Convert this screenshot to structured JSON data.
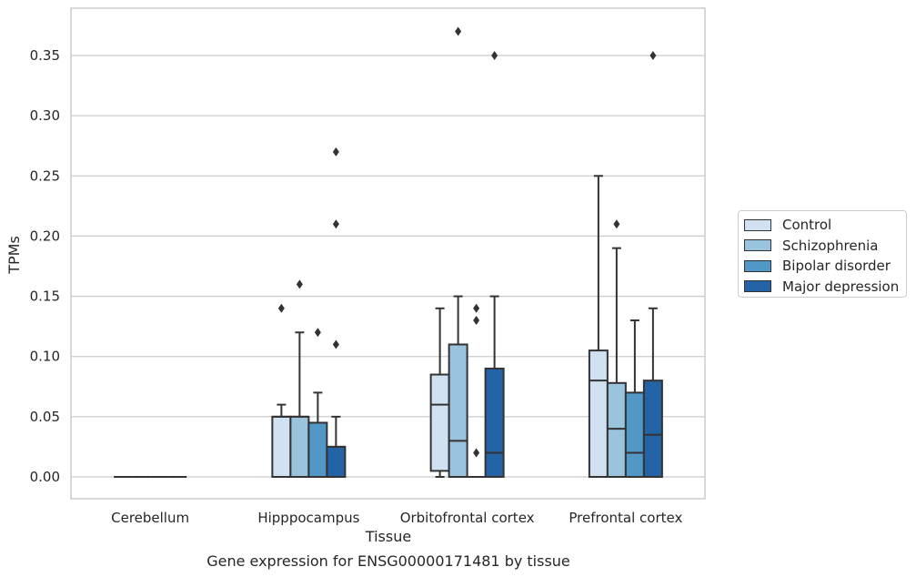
{
  "chart_data": {
    "type": "box",
    "title": "Gene expression for ENSG00000171481 by tissue",
    "xlabel": "Tissue",
    "ylabel": "TPMs",
    "ylim": [
      -0.018,
      0.39
    ],
    "yticks": [
      "0.00",
      "0.05",
      "0.10",
      "0.15",
      "0.20",
      "0.25",
      "0.30",
      "0.35"
    ],
    "grid": "horizontal",
    "legend_position": "right",
    "categories": [
      "Cerebellum",
      "Hipppocampus",
      "Orbitofrontal cortex",
      "Prefrontal cortex"
    ],
    "series": [
      {
        "name": "Control",
        "color": "#d0e1f2",
        "boxes": [
          {
            "whislo": 0,
            "q1": 0,
            "med": 0,
            "q3": 0,
            "whishi": 0,
            "fliers": []
          },
          {
            "whislo": 0,
            "q1": 0,
            "med": 0.05,
            "q3": 0.05,
            "whishi": 0.06,
            "fliers": [
              0.14
            ]
          },
          {
            "whislo": 0,
            "q1": 0.005,
            "med": 0.06,
            "q3": 0.085,
            "whishi": 0.14,
            "fliers": []
          },
          {
            "whislo": 0,
            "q1": 0,
            "med": 0.08,
            "q3": 0.105,
            "whishi": 0.25,
            "fliers": []
          }
        ]
      },
      {
        "name": "Schizophrenia",
        "color": "#9ac3dd",
        "boxes": [
          {
            "whislo": 0,
            "q1": 0,
            "med": 0,
            "q3": 0,
            "whishi": 0,
            "fliers": []
          },
          {
            "whislo": 0,
            "q1": 0,
            "med": 0.05,
            "q3": 0.05,
            "whishi": 0.12,
            "fliers": [
              0.16
            ]
          },
          {
            "whislo": 0,
            "q1": 0,
            "med": 0.03,
            "q3": 0.11,
            "whishi": 0.15,
            "fliers": [
              0.37
            ]
          },
          {
            "whislo": 0,
            "q1": 0,
            "med": 0.04,
            "q3": 0.078,
            "whishi": 0.19,
            "fliers": [
              0.21
            ]
          }
        ]
      },
      {
        "name": "Bipolar disorder",
        "color": "#5198c7",
        "boxes": [
          {
            "whislo": 0,
            "q1": 0,
            "med": 0,
            "q3": 0,
            "whishi": 0,
            "fliers": []
          },
          {
            "whislo": 0,
            "q1": 0,
            "med": 0.045,
            "q3": 0.045,
            "whishi": 0.07,
            "fliers": [
              0.12
            ]
          },
          {
            "whislo": 0,
            "q1": 0,
            "med": 0,
            "q3": 0,
            "whishi": 0,
            "fliers": [
              0.02,
              0.13,
              0.14
            ]
          },
          {
            "whislo": 0,
            "q1": 0,
            "med": 0.02,
            "q3": 0.07,
            "whishi": 0.13,
            "fliers": []
          }
        ]
      },
      {
        "name": "Major depression",
        "color": "#2463a6",
        "boxes": [
          {
            "whislo": 0,
            "q1": 0,
            "med": 0,
            "q3": 0,
            "whishi": 0,
            "fliers": []
          },
          {
            "whislo": 0,
            "q1": 0,
            "med": 0.025,
            "q3": 0.025,
            "whishi": 0.05,
            "fliers": [
              0.11,
              0.21,
              0.27
            ]
          },
          {
            "whislo": 0,
            "q1": 0,
            "med": 0.02,
            "q3": 0.09,
            "whishi": 0.15,
            "fliers": [
              0.35
            ]
          },
          {
            "whislo": 0,
            "q1": 0,
            "med": 0.035,
            "q3": 0.08,
            "whishi": 0.14,
            "fliers": [
              0.35
            ]
          }
        ]
      }
    ]
  }
}
